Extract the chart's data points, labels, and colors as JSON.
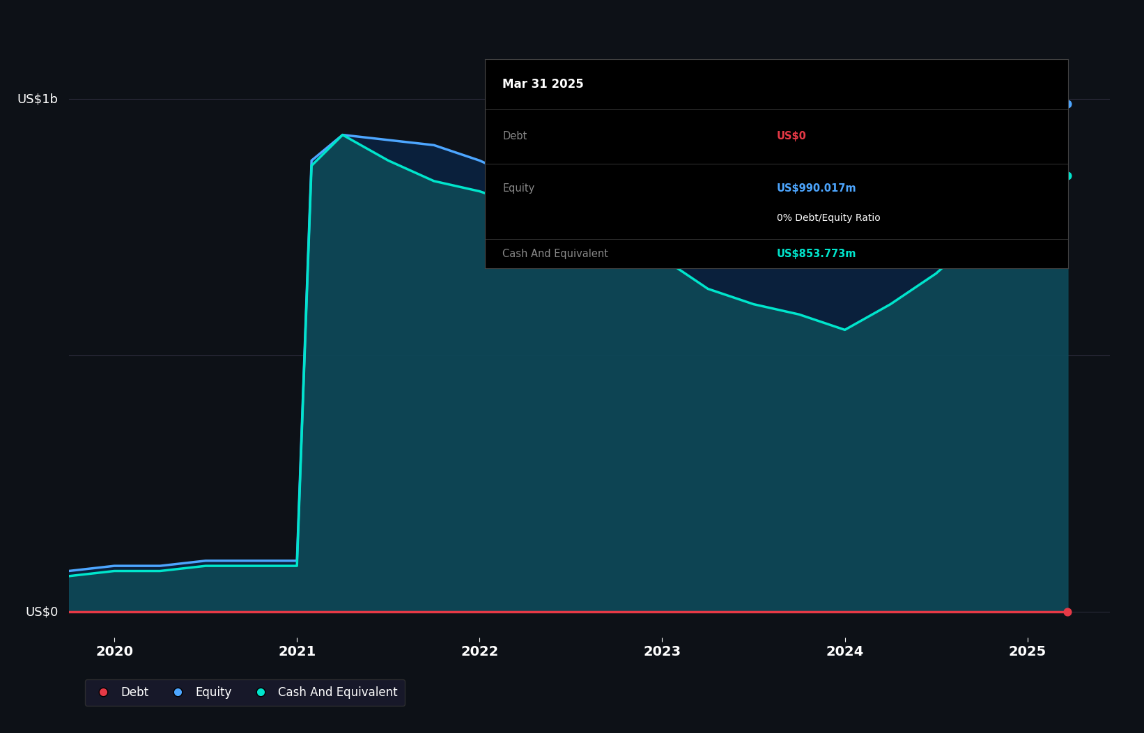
{
  "bg_color": "#0d1117",
  "plot_bg_color": "#0d1117",
  "ylabel_1b": "US$1b",
  "ylabel_0": "US$0",
  "xlim": [
    2019.75,
    2025.45
  ],
  "ylim": [
    -0.05,
    1.15
  ],
  "xticks": [
    2020,
    2021,
    2022,
    2023,
    2024,
    2025
  ],
  "grid_color": "#2a2a3a",
  "equity_color": "#4da6ff",
  "cash_color": "#00e5cc",
  "debt_color": "#e63946",
  "tooltip": {
    "date": "Mar 31 2025",
    "debt_label": "Debt",
    "debt_value": "US$0",
    "equity_label": "Equity",
    "equity_value": "US$990.017m",
    "ratio_text": "0% Debt/Equity Ratio",
    "cash_label": "Cash And Equivalent",
    "cash_value": "US$853.773m",
    "header_color": "#ffffff",
    "label_color": "#888888",
    "debt_val_color": "#e63946",
    "equity_val_color": "#4da6ff",
    "cash_val_color": "#00e5cc",
    "ratio_color": "#ffffff"
  },
  "legend": {
    "debt_label": "Debt",
    "equity_label": "Equity",
    "cash_label": "Cash And Equivalent",
    "debt_color": "#e63946",
    "equity_color": "#4da6ff",
    "cash_color": "#00e5cc"
  },
  "dates": [
    2019.75,
    2020.0,
    2020.25,
    2020.5,
    2020.75,
    2021.0,
    2021.08,
    2021.25,
    2021.5,
    2021.75,
    2022.0,
    2022.25,
    2022.5,
    2022.75,
    2023.0,
    2023.25,
    2023.5,
    2023.75,
    2024.0,
    2024.25,
    2024.5,
    2024.75,
    2025.0,
    2025.22
  ],
  "equity": [
    0.08,
    0.09,
    0.09,
    0.1,
    0.1,
    0.1,
    0.88,
    0.93,
    0.92,
    0.91,
    0.88,
    0.84,
    0.8,
    0.76,
    0.73,
    0.71,
    0.7,
    0.68,
    0.68,
    0.72,
    0.78,
    0.85,
    0.92,
    0.99
  ],
  "cash": [
    0.07,
    0.08,
    0.08,
    0.09,
    0.09,
    0.09,
    0.87,
    0.93,
    0.88,
    0.84,
    0.82,
    0.79,
    0.76,
    0.72,
    0.69,
    0.63,
    0.6,
    0.58,
    0.55,
    0.6,
    0.66,
    0.74,
    0.8,
    0.85
  ],
  "debt": [
    0.0,
    0.0,
    0.0,
    0.0,
    0.0,
    0.0,
    0.0,
    0.0,
    0.0,
    0.0,
    0.0,
    0.0,
    0.0,
    0.0,
    0.0,
    0.0,
    0.0,
    0.0,
    0.0,
    0.0,
    0.0,
    0.0,
    0.0,
    0.0
  ]
}
